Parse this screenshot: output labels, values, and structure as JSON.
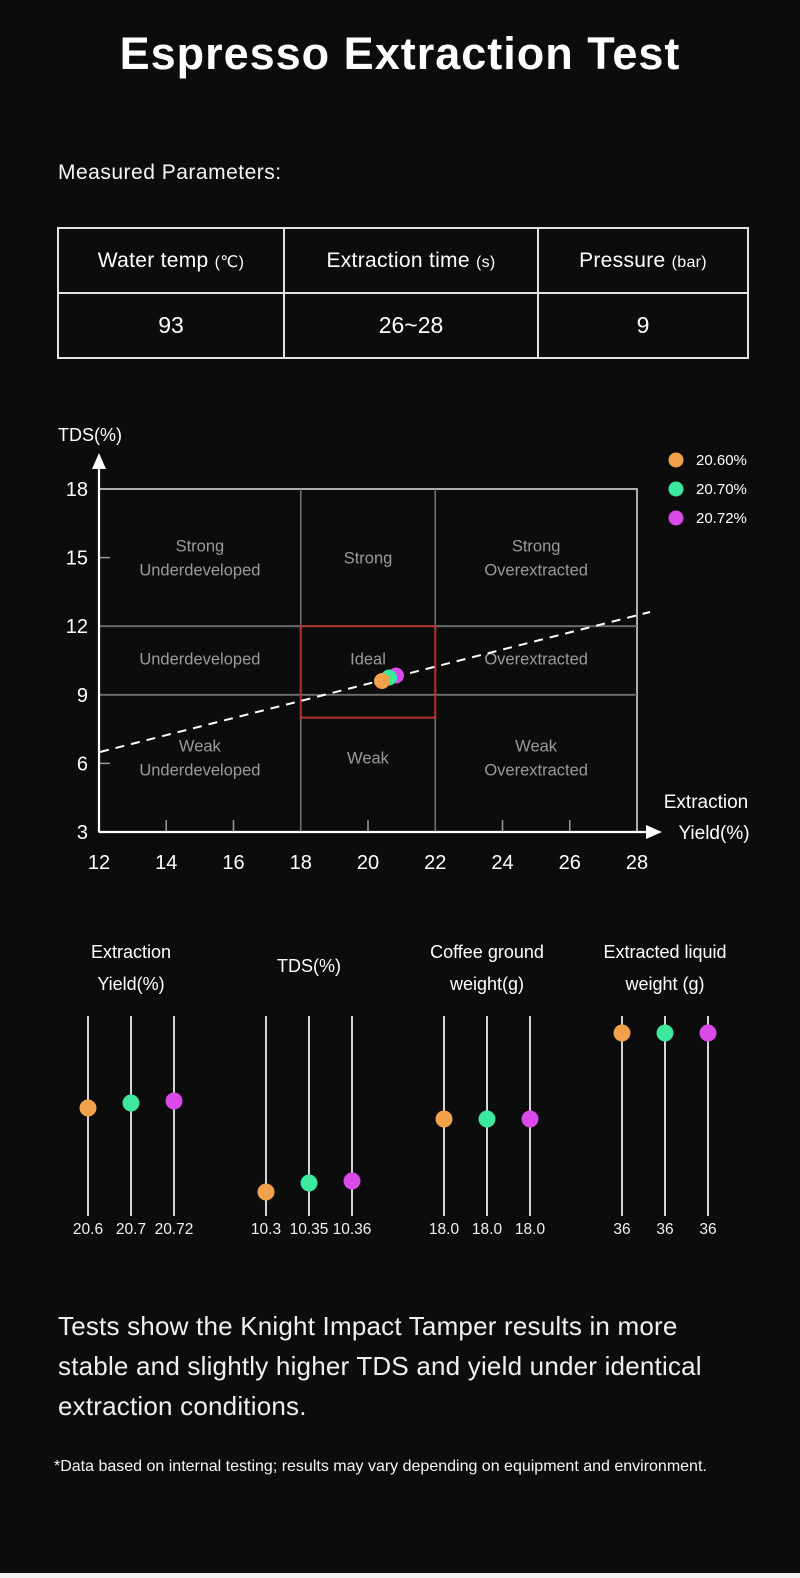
{
  "title": "Espresso Extraction Test",
  "sections": {
    "parameters_label": "Measured Parameters:",
    "summary_lines": [
      "Tests show the Knight Impact Tamper results in more",
      "stable and slightly higher TDS and yield under identical",
      "extraction conditions."
    ],
    "footnote": "*Data based on internal testing; results may vary depending on equipment and environment."
  },
  "parameters_table": {
    "columns": [
      {
        "header": "Water temp",
        "unit": "(℃)",
        "value": "93"
      },
      {
        "header": "Extraction time",
        "unit": "(s)",
        "value": "26~28"
      },
      {
        "header": "Pressure",
        "unit": "(bar)",
        "value": "9"
      }
    ]
  },
  "colors": {
    "trial1": "#F2A14B",
    "trial2": "#3CE89E",
    "trial3": "#D94AE8",
    "ideal_box": "#B4332A",
    "zone_label": "#9A9A9A",
    "grid": "#6E6E6E",
    "axis": "#FFFFFF",
    "plot_border": "#D6D6D6",
    "strip_line": "#D4D4D4"
  },
  "chart_data": [
    {
      "type": "scatter",
      "title": "Espresso extraction zones",
      "ylabel": "TDS(%)",
      "xlabel_lines": [
        "Extraction",
        "Yield(%)"
      ],
      "xlim": [
        12,
        28
      ],
      "ylim": [
        3,
        18
      ],
      "x_ticks": [
        12,
        14,
        16,
        18,
        20,
        22,
        24,
        26,
        28
      ],
      "y_ticks": [
        18,
        15,
        12,
        9,
        6,
        3
      ],
      "grid_x": [
        18,
        22
      ],
      "grid_y": [
        12,
        9
      ],
      "zones": [
        {
          "row": 0,
          "col": 0,
          "lines": [
            "Strong",
            "Underdeveloped"
          ]
        },
        {
          "row": 0,
          "col": 1,
          "lines": [
            "Strong"
          ]
        },
        {
          "row": 0,
          "col": 2,
          "lines": [
            "Strong",
            "Overextracted"
          ]
        },
        {
          "row": 1,
          "col": 0,
          "lines": [
            "Underdeveloped"
          ]
        },
        {
          "row": 1,
          "col": 1,
          "lines": [
            "Ideal"
          ]
        },
        {
          "row": 1,
          "col": 2,
          "lines": [
            "Overextracted"
          ]
        },
        {
          "row": 2,
          "col": 0,
          "lines": [
            "Weak",
            "Underdeveloped"
          ]
        },
        {
          "row": 2,
          "col": 1,
          "lines": [
            "Weak"
          ]
        },
        {
          "row": 2,
          "col": 2,
          "lines": [
            "Weak",
            "Overextracted"
          ]
        }
      ],
      "ideal_box": {
        "x": [
          18,
          22
        ],
        "y": [
          8,
          12
        ]
      },
      "trend_line": "dashed",
      "legend_position": "top-right",
      "grid": true,
      "series": [
        {
          "name": "20.60%",
          "color_key": "trial1",
          "points": [
            [
              20.6,
              10.3
            ]
          ]
        },
        {
          "name": "20.70%",
          "color_key": "trial2",
          "points": [
            [
              20.7,
              10.35
            ]
          ]
        },
        {
          "name": "20.72%",
          "color_key": "trial3",
          "points": [
            [
              20.72,
              10.36
            ]
          ]
        }
      ]
    },
    {
      "type": "strip",
      "groups": [
        {
          "title_lines": [
            "Extraction",
            "Yield(%)"
          ],
          "values": [
            "20.6",
            "20.7",
            "20.72"
          ],
          "dot_pos": [
            0.46,
            0.435,
            0.425
          ]
        },
        {
          "title_lines": [
            "TDS(%)"
          ],
          "values": [
            "10.3",
            "10.35",
            "10.36"
          ],
          "dot_pos": [
            0.88,
            0.835,
            0.825
          ]
        },
        {
          "title_lines": [
            "Coffee ground",
            "weight(g)"
          ],
          "values": [
            "18.0",
            "18.0",
            "18.0"
          ],
          "dot_pos": [
            0.515,
            0.515,
            0.515
          ]
        },
        {
          "title_lines": [
            "Extracted liquid",
            "weight (g)"
          ],
          "values": [
            "36",
            "36",
            "36"
          ],
          "dot_pos": [
            0.085,
            0.085,
            0.085
          ]
        }
      ]
    }
  ]
}
